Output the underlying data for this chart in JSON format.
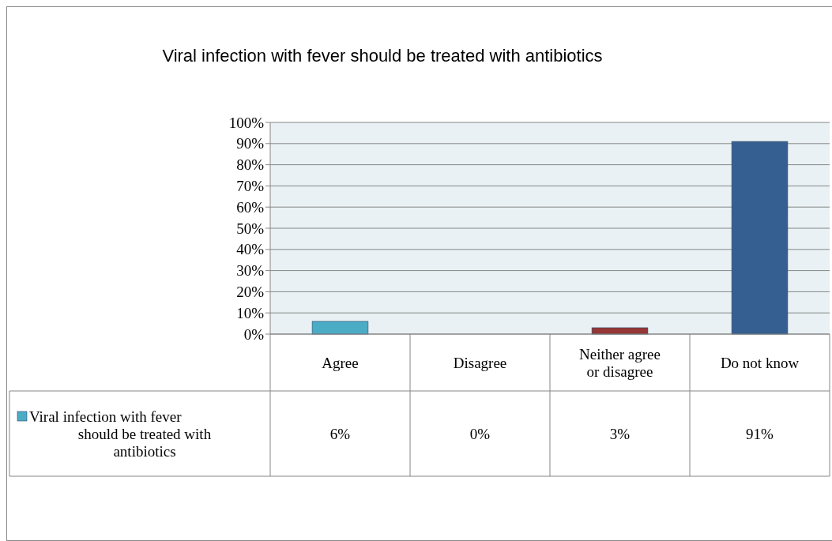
{
  "chart_data": {
    "type": "bar",
    "title": "Viral infection with fever should be treated with antibiotics",
    "categories": [
      "Agree",
      "Disagree",
      "Neither agree or disagree",
      "Do not know"
    ],
    "series": [
      {
        "name": "Viral infection with fever should be treated with antibiotics",
        "color": "#4bacc6",
        "colors": [
          "#4bacc6",
          "#4f81bd",
          "#953735",
          "#365f91"
        ],
        "values": [
          6,
          0,
          3,
          91
        ],
        "value_labels": [
          "6%",
          "0%",
          "3%",
          "91%"
        ]
      }
    ],
    "ylim": [
      0,
      100
    ],
    "yticks": [
      {
        "value": 0,
        "label": "0%"
      },
      {
        "value": 10,
        "label": "10%"
      },
      {
        "value": 20,
        "label": "20%"
      },
      {
        "value": 30,
        "label": "30%"
      },
      {
        "value": 40,
        "label": "40%"
      },
      {
        "value": 50,
        "label": "50%"
      },
      {
        "value": 60,
        "label": "60%"
      },
      {
        "value": 70,
        "label": "70%"
      },
      {
        "value": 80,
        "label": "80%"
      },
      {
        "value": 90,
        "label": "90%"
      },
      {
        "value": 100,
        "label": "100%"
      }
    ],
    "grid": "y",
    "legend": "bottom"
  }
}
